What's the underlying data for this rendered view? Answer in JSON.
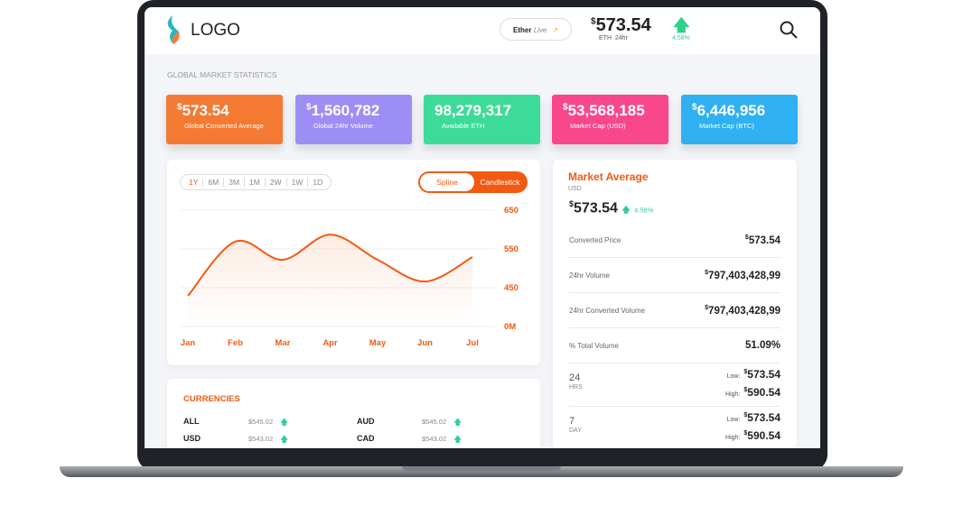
{
  "header": {
    "logo": "LOGO",
    "ticker_label": "Ether",
    "ticker_live": "Live",
    "price_symbol": "$",
    "price": "573.54",
    "price_unit": "ETH",
    "price_period": "24hr",
    "change": "4.58%"
  },
  "section_title": "GLOBAL MARKET STATISTICS",
  "cards": [
    {
      "symbol": "$",
      "value": "573.54",
      "label": "Global Converted Average",
      "color": "#f47a34"
    },
    {
      "symbol": "$",
      "value": "1,560,782",
      "label": "Global 24hr Volume",
      "color": "#9d8ef5"
    },
    {
      "value": "98,279,317",
      "label": "Available ETH",
      "color": "#3ddb9a"
    },
    {
      "symbol": "$",
      "value": "53,568,185",
      "label": "Market Cap (USD)",
      "color": "#f8478a"
    },
    {
      "symbol": "$",
      "value": "6,446,956",
      "label": "Market Cap (BTC)",
      "color": "#2fb0f2"
    }
  ],
  "chart_data": {
    "type": "line",
    "ranges": [
      "1Y",
      "6M",
      "3M",
      "1M",
      "2W",
      "1W",
      "1D"
    ],
    "toggle": [
      "Spline",
      "Candlestick"
    ],
    "categories": [
      "Jan",
      "Feb",
      "Mar",
      "Apr",
      "May",
      "Jun",
      "Jul"
    ],
    "series": [
      {
        "color": "#f25a12",
        "values": [
          429,
          569,
          522,
          587,
          522,
          466,
          529
        ]
      }
    ],
    "ylim": [
      350,
      650
    ],
    "yticks": [
      650,
      550,
      450,
      {
        "value": 350,
        "label": "0M"
      }
    ]
  },
  "market": {
    "title": "Market Average",
    "currency": "USD",
    "symbol": "$",
    "price": "573.54",
    "change": "4.58%",
    "rows": [
      {
        "label": "Converted Price",
        "symbol": "$",
        "value": "573.54"
      },
      {
        "label": "24hr Volume",
        "symbol": "$",
        "value": "797,403,428,99"
      },
      {
        "label": "24hr Converted Volume",
        "symbol": "$",
        "value": "797,403,428,99"
      },
      {
        "label": "% Total Volume",
        "value": "51.09%"
      }
    ],
    "periods": [
      {
        "num": "24",
        "unit": "HRS",
        "low_label": "Low:",
        "low_symbol": "$",
        "low": "573.54",
        "high_label": "High:",
        "high_symbol": "$",
        "high": "590.54"
      },
      {
        "num": "7",
        "unit": "DAY",
        "low_label": "Low:",
        "low_symbol": "$",
        "low": "573.54",
        "high_label": "High:",
        "high_symbol": "$",
        "high": "590.54"
      }
    ]
  },
  "currencies": {
    "title": "CURRENCIES",
    "items": [
      {
        "code": "ALL",
        "price": "$545.02"
      },
      {
        "code": "AUD",
        "price": "$545.02"
      },
      {
        "code": "USD",
        "price": "$543.02"
      },
      {
        "code": "CAD",
        "price": "$543.02"
      }
    ]
  }
}
